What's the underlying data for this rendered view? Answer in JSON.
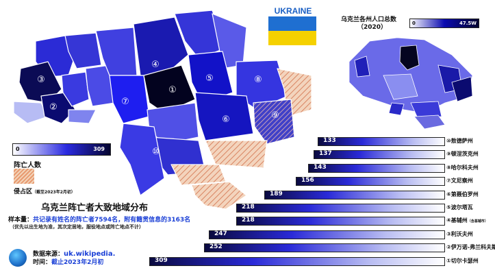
{
  "flag_label": "UKRAINE",
  "inset": {
    "title": "乌克兰各州人口总数",
    "subtitle": "（2020）",
    "legend_min": "0",
    "legend_max": "47.5W"
  },
  "legend": {
    "min": "0",
    "max": "309",
    "label": "阵亡人数",
    "occupied_label": "侵占区",
    "occupied_note": "（截至2023年2月初）"
  },
  "title": "乌克兰阵亡者大致地域分布",
  "sample": {
    "prefix": "样本量：",
    "text1": "共记录有姓名的阵亡者7594名，",
    "text2": "附有籍贯信息的3163名"
  },
  "note": "（优先以出生地为准，其次定居地，服役地点或阵亡地点不计）",
  "source": {
    "label": "数据来源：",
    "value": "uk.wikipedia."
  },
  "time": {
    "label": "时间：",
    "value": "截止2023年2月初"
  },
  "map_numbers": [
    "①",
    "②",
    "③",
    "④",
    "⑤",
    "⑥",
    "⑦",
    "⑧",
    "⑨",
    "⑩"
  ],
  "colors": {
    "dark": "#050530",
    "mid": "#2323d8",
    "light": "#c8ccf5",
    "occupied": "#e89a70"
  },
  "chart_data": {
    "type": "bar",
    "categories": [
      "⑩敖德萨州",
      "⑨顿涅茨克州",
      "⑧哈尔科夫州",
      "⑦文尼察州",
      "⑥第聂伯罗州",
      "⑤波尔塔瓦",
      "④基辅州",
      "③利沃夫州",
      "②伊万诺-弗兰科夫斯克州",
      "①切尔卡瑟州"
    ],
    "category_notes": [
      "",
      "",
      "",
      "",
      "",
      "",
      "（含基辅市）",
      "",
      "",
      ""
    ],
    "values": [
      133,
      137,
      143,
      156,
      189,
      218,
      218,
      247,
      252,
      309
    ],
    "xlim": [
      0,
      309
    ]
  }
}
